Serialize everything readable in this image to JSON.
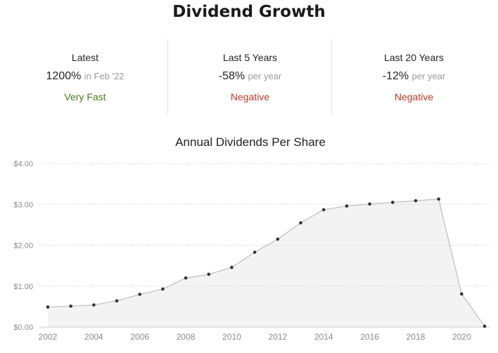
{
  "title": "Dividend Growth",
  "stats": [
    {
      "label": "Latest",
      "value": "1200%",
      "suffix": "in Feb '22",
      "rating": "Very Fast",
      "rating_color": "#4a7a1e"
    },
    {
      "label": "Last 5 Years",
      "value": "-58%",
      "suffix": "per year",
      "rating": "Negative",
      "rating_color": "#c0392b"
    },
    {
      "label": "Last 20 Years",
      "value": "-12%",
      "suffix": "per year",
      "rating": "Negative",
      "rating_color": "#c0392b"
    }
  ],
  "chart_data": {
    "type": "area",
    "title": "Annual Dividends Per Share",
    "x": [
      2002,
      2003,
      2004,
      2005,
      2006,
      2007,
      2008,
      2009,
      2010,
      2011,
      2012,
      2013,
      2014,
      2015,
      2016,
      2017,
      2018,
      2019,
      2020,
      2021
    ],
    "values": [
      0.49,
      0.51,
      0.54,
      0.64,
      0.8,
      0.93,
      1.2,
      1.29,
      1.46,
      1.83,
      2.15,
      2.55,
      2.87,
      2.96,
      3.01,
      3.05,
      3.09,
      3.13,
      0.81,
      0.02
    ],
    "x_ticks": [
      "2002",
      "2004",
      "2006",
      "2008",
      "2010",
      "2012",
      "2014",
      "2016",
      "2018",
      "2020"
    ],
    "x_tick_values": [
      2002,
      2004,
      2006,
      2008,
      2010,
      2012,
      2014,
      2016,
      2018,
      2020
    ],
    "y_ticks": [
      "$0.00",
      "$1.00",
      "$2.00",
      "$3.00",
      "$4.00"
    ],
    "y_tick_values": [
      0,
      1,
      2,
      3,
      4
    ],
    "ylim": [
      0,
      4
    ],
    "xlim": [
      2002,
      2021
    ],
    "grid": true,
    "colors": {
      "line": "#bdbdbd",
      "fill": "#f3f3f3",
      "point": "#333333",
      "grid": "#c9c9c9",
      "tick_text": "#8a8a8a"
    }
  }
}
